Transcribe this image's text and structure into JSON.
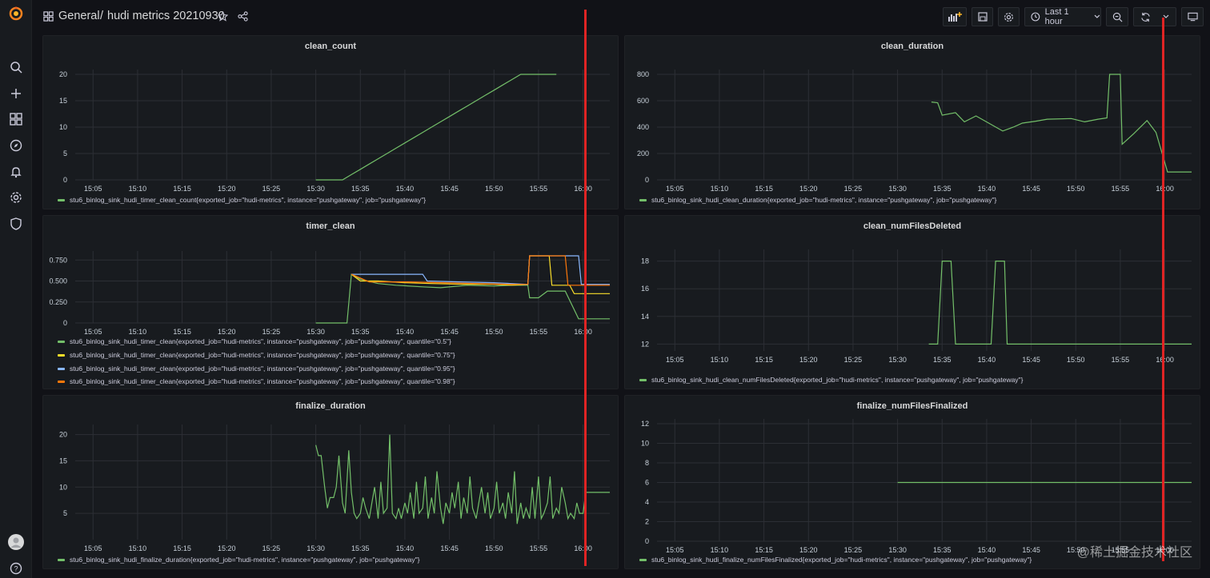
{
  "nav": {
    "dashboard_title": "hudi metrics 20210930",
    "folder": "General",
    "separator": "/",
    "time_range": "Last 1 hour",
    "sidebar_icons": [
      "grafana-logo-icon",
      "search-icon",
      "plus-icon",
      "dashboards-icon",
      "explore-icon",
      "alerting-icon",
      "gear-icon",
      "shield-icon",
      "avatar",
      "help-icon"
    ]
  },
  "colors": {
    "green": "#73bf69",
    "yellow": "#fade2a",
    "blue": "#8ab8ff",
    "orange": "#ff780a",
    "red_marker": "#e02424"
  },
  "time_ticks": [
    "15:05",
    "15:10",
    "15:15",
    "15:20",
    "15:25",
    "15:30",
    "15:35",
    "15:40",
    "15:45",
    "15:50",
    "15:55",
    "16:00"
  ],
  "panels": [
    {
      "title": "clean_count",
      "ylim": [
        0,
        20
      ],
      "yticks": [
        "0",
        "5",
        "10",
        "15",
        "20"
      ],
      "series": [
        {
          "name": "stu6_binlog_sink_hudi_timer_clean_count{exported_job=\"hudi-metrics\", instance=\"pushgateway\", job=\"pushgateway\"}",
          "color": "green",
          "points": [
            [
              30,
              0
            ],
            [
              33,
              0
            ],
            [
              34,
              1
            ],
            [
              35,
              2
            ],
            [
              36,
              3
            ],
            [
              37,
              4
            ],
            [
              38,
              5
            ],
            [
              39,
              6
            ],
            [
              40,
              7
            ],
            [
              41,
              8
            ],
            [
              42,
              9
            ],
            [
              43,
              10
            ],
            [
              44,
              11
            ],
            [
              45,
              12
            ],
            [
              46,
              13
            ],
            [
              47,
              14
            ],
            [
              48,
              15
            ],
            [
              49,
              16
            ],
            [
              50,
              17
            ],
            [
              51,
              18
            ],
            [
              52,
              19
            ],
            [
              53,
              20
            ],
            [
              57,
              20
            ]
          ]
        }
      ]
    },
    {
      "title": "clean_duration",
      "ylim": [
        0,
        800
      ],
      "yticks": [
        "0",
        "200",
        "400",
        "600",
        "800"
      ],
      "series": [
        {
          "name": "stu6_binlog_sink_hudi_clean_duration{exported_job=\"hudi-metrics\", instance=\"pushgateway\", job=\"pushgateway\"}",
          "color": "green",
          "points": [
            [
              33.8,
              590
            ],
            [
              34.5,
              585
            ],
            [
              35,
              490
            ],
            [
              36.5,
              510
            ],
            [
              37.5,
              440
            ],
            [
              38.8,
              485
            ],
            [
              41.8,
              370
            ],
            [
              43,
              400
            ],
            [
              44,
              430
            ],
            [
              45.5,
              445
            ],
            [
              46.8,
              460
            ],
            [
              49.5,
              465
            ],
            [
              51,
              440
            ],
            [
              52.5,
              460
            ],
            [
              53.5,
              470
            ],
            [
              53.8,
              800
            ],
            [
              55,
              800
            ],
            [
              55.2,
              270
            ],
            [
              56.5,
              350
            ],
            [
              58,
              450
            ],
            [
              59,
              360
            ],
            [
              60.3,
              60
            ],
            [
              63,
              60
            ]
          ]
        }
      ]
    },
    {
      "title": "timer_clean",
      "ylim": [
        0,
        0.8
      ],
      "yticks": [
        "0",
        "0.250",
        "0.500",
        "0.750"
      ],
      "series": [
        {
          "name": "stu6_binlog_sink_hudi_timer_clean{exported_job=\"hudi-metrics\", instance=\"pushgateway\", job=\"pushgateway\", quantile=\"0.5\"}",
          "color": "green",
          "points": [
            [
              30,
              0
            ],
            [
              33.5,
              0
            ],
            [
              34,
              0.58
            ],
            [
              35,
              0.52
            ],
            [
              37,
              0.47
            ],
            [
              39,
              0.45
            ],
            [
              42,
              0.43
            ],
            [
              44,
              0.42
            ],
            [
              47,
              0.45
            ],
            [
              50,
              0.44
            ],
            [
              52,
              0.45
            ],
            [
              53.8,
              0.45
            ],
            [
              54,
              0.3
            ],
            [
              55,
              0.3
            ],
            [
              56,
              0.38
            ],
            [
              58,
              0.38
            ],
            [
              59.5,
              0.05
            ],
            [
              63,
              0.05
            ]
          ]
        },
        {
          "name": "stu6_binlog_sink_hudi_timer_clean{exported_job=\"hudi-metrics\", instance=\"pushgateway\", job=\"pushgateway\", quantile=\"0.75\"}",
          "color": "yellow",
          "points": [
            [
              34,
              0.58
            ],
            [
              35,
              0.5
            ],
            [
              37,
              0.5
            ],
            [
              40,
              0.48
            ],
            [
              43,
              0.47
            ],
            [
              47,
              0.46
            ],
            [
              50,
              0.46
            ],
            [
              52,
              0.45
            ],
            [
              53.8,
              0.46
            ],
            [
              54,
              0.8
            ],
            [
              56.2,
              0.8
            ],
            [
              56.5,
              0.45
            ],
            [
              58.5,
              0.45
            ],
            [
              59,
              0.35
            ],
            [
              63,
              0.35
            ]
          ]
        },
        {
          "name": "stu6_binlog_sink_hudi_timer_clean{exported_job=\"hudi-metrics\", instance=\"pushgateway\", job=\"pushgateway\", quantile=\"0.95\"}",
          "color": "blue",
          "points": [
            [
              34,
              0.58
            ],
            [
              38,
              0.58
            ],
            [
              42,
              0.58
            ],
            [
              42.5,
              0.5
            ],
            [
              46,
              0.49
            ],
            [
              50,
              0.48
            ],
            [
              53.8,
              0.46
            ],
            [
              54,
              0.8
            ],
            [
              59.5,
              0.8
            ],
            [
              59.8,
              0.46
            ],
            [
              63,
              0.46
            ]
          ]
        },
        {
          "name": "stu6_binlog_sink_hudi_timer_clean{exported_job=\"hudi-metrics\", instance=\"pushgateway\", job=\"pushgateway\", quantile=\"0.98\"}",
          "color": "orange",
          "points": [
            [
              34,
              0.58
            ],
            [
              36,
              0.49
            ],
            [
              40,
              0.49
            ],
            [
              44,
              0.48
            ],
            [
              48,
              0.47
            ],
            [
              52,
              0.46
            ],
            [
              53.8,
              0.46
            ],
            [
              54,
              0.8
            ],
            [
              58,
              0.8
            ],
            [
              58.3,
              0.45
            ],
            [
              63,
              0.45
            ]
          ]
        }
      ]
    },
    {
      "title": "clean_numFilesDeleted",
      "ylim": [
        11.5,
        18.5
      ],
      "yticks": [
        "12",
        "14",
        "16",
        "18"
      ],
      "series": [
        {
          "name": "stu6_binlog_sink_hudi_clean_numFilesDeleted{exported_job=\"hudi-metrics\", instance=\"pushgateway\", job=\"pushgateway\"}",
          "color": "green",
          "points": [
            [
              33.5,
              12
            ],
            [
              34.5,
              12
            ],
            [
              35,
              18
            ],
            [
              36,
              18
            ],
            [
              36.5,
              12
            ],
            [
              40.5,
              12
            ],
            [
              41,
              18
            ],
            [
              42,
              18
            ],
            [
              42.3,
              12
            ],
            [
              63,
              12
            ]
          ]
        }
      ]
    },
    {
      "title": "finalize_duration",
      "ylim": [
        0,
        21
      ],
      "yticks": [
        "5",
        "10",
        "15",
        "20"
      ],
      "series": [
        {
          "name": "stu6_binlog_sink_hudi_finalize_duration{exported_job=\"hudi-metrics\", instance=\"pushgateway\", job=\"pushgateway\"}",
          "color": "green",
          "points": [
            [
              30,
              18
            ],
            [
              30.3,
              16
            ],
            [
              30.6,
              16
            ],
            [
              31,
              10
            ],
            [
              31.3,
              6
            ],
            [
              31.6,
              8
            ],
            [
              32,
              8
            ],
            [
              32.3,
              10
            ],
            [
              32.6,
              16
            ],
            [
              33,
              7
            ],
            [
              33.3,
              5
            ],
            [
              33.7,
              17
            ],
            [
              34,
              9
            ],
            [
              34.3,
              5
            ],
            [
              34.6,
              4
            ],
            [
              35,
              5
            ],
            [
              35.3,
              8
            ],
            [
              35.6,
              6
            ],
            [
              36,
              4
            ],
            [
              36.3,
              7
            ],
            [
              36.6,
              10
            ],
            [
              37,
              4
            ],
            [
              37.3,
              11
            ],
            [
              37.6,
              5
            ],
            [
              38,
              6
            ],
            [
              38.3,
              20
            ],
            [
              38.6,
              5
            ],
            [
              39,
              4
            ],
            [
              39.3,
              6
            ],
            [
              39.6,
              4
            ],
            [
              40,
              7
            ],
            [
              40.3,
              5
            ],
            [
              40.6,
              9
            ],
            [
              41,
              4
            ],
            [
              41.3,
              11
            ],
            [
              41.6,
              5
            ],
            [
              42,
              6
            ],
            [
              42.3,
              12
            ],
            [
              42.6,
              4
            ],
            [
              43,
              8
            ],
            [
              43.3,
              5
            ],
            [
              43.6,
              13
            ],
            [
              44,
              6
            ],
            [
              44.3,
              3
            ],
            [
              44.6,
              7
            ],
            [
              45,
              5
            ],
            [
              45.3,
              9
            ],
            [
              45.6,
              6
            ],
            [
              46,
              11
            ],
            [
              46.3,
              4
            ],
            [
              46.6,
              8
            ],
            [
              47,
              5
            ],
            [
              47.3,
              12
            ],
            [
              47.6,
              6
            ],
            [
              48,
              4
            ],
            [
              48.3,
              7
            ],
            [
              48.6,
              10
            ],
            [
              49,
              5
            ],
            [
              49.3,
              9
            ],
            [
              49.6,
              4
            ],
            [
              50,
              6
            ],
            [
              50.3,
              11
            ],
            [
              50.6,
              5
            ],
            [
              51,
              7
            ],
            [
              51.3,
              4
            ],
            [
              51.6,
              9
            ],
            [
              52,
              5
            ],
            [
              52.3,
              13
            ],
            [
              52.6,
              3
            ],
            [
              53,
              7
            ],
            [
              53.3,
              4
            ],
            [
              53.6,
              6
            ],
            [
              54,
              4
            ],
            [
              54.3,
              10
            ],
            [
              54.6,
              4
            ],
            [
              55,
              12
            ],
            [
              55.3,
              4
            ],
            [
              55.6,
              5
            ],
            [
              56,
              7
            ],
            [
              56.3,
              12
            ],
            [
              56.6,
              4
            ],
            [
              57,
              6
            ],
            [
              57.3,
              5
            ],
            [
              57.6,
              10
            ],
            [
              58,
              7
            ],
            [
              58.3,
              4
            ],
            [
              58.6,
              5
            ],
            [
              59,
              4
            ],
            [
              59.3,
              7
            ],
            [
              59.6,
              5
            ],
            [
              60,
              5
            ],
            [
              60.3,
              9
            ],
            [
              63,
              9
            ]
          ]
        }
      ]
    },
    {
      "title": "finalize_numFilesFinalized",
      "ylim": [
        0,
        12
      ],
      "yticks": [
        "0",
        "2",
        "4",
        "6",
        "8",
        "10",
        "12"
      ],
      "series": [
        {
          "name": "stu6_binlog_sink_hudi_finalize_numFilesFinalized{exported_job=\"hudi-metrics\", instance=\"pushgateway\", job=\"pushgateway\"}",
          "color": "green",
          "points": [
            [
              30,
              6
            ],
            [
              63,
              6
            ]
          ]
        }
      ]
    }
  ],
  "watermark": "@稀土掘金技术社区"
}
